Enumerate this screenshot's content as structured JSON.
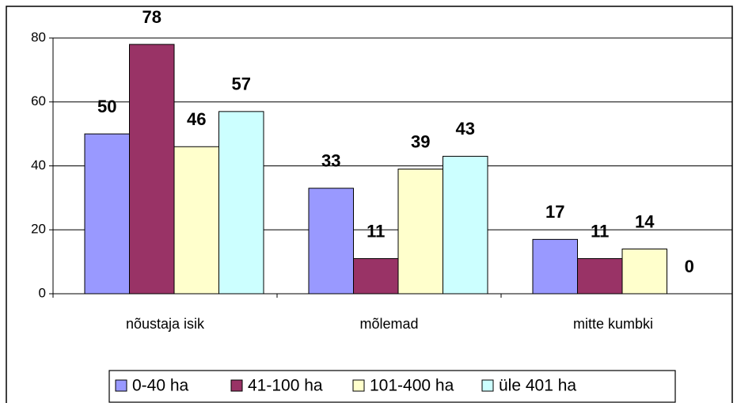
{
  "chart_data": {
    "type": "bar",
    "categories": [
      "nõustaja isik",
      "mõlemad",
      "mitte kumbki"
    ],
    "series": [
      {
        "name": "0-40 ha",
        "color": "#9999ff",
        "values": [
          50,
          33,
          17
        ]
      },
      {
        "name": "41-100 ha",
        "color": "#993366",
        "values": [
          78,
          11,
          11
        ]
      },
      {
        "name": "101-400 ha",
        "color": "#ffffcc",
        "values": [
          46,
          39,
          14
        ]
      },
      {
        "name": "üle 401 ha",
        "color": "#ccffff",
        "values": [
          57,
          43,
          0
        ]
      }
    ],
    "ylim": [
      0,
      80
    ],
    "yticks": [
      0,
      20,
      40,
      60,
      80
    ],
    "grid": true,
    "legend": "bottom"
  }
}
